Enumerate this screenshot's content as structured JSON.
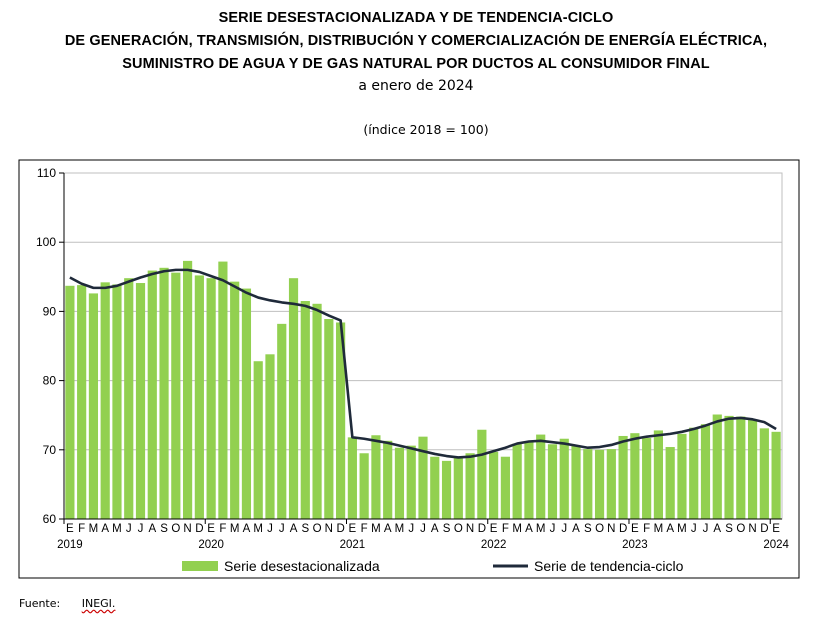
{
  "titles": {
    "line1": "SERIE DESESTACIONALIZADA Y DE TENDENCIA-CICLO",
    "line2": "DE GENERACIÓN, TRANSMISIÓN, DISTRIBUCIÓN Y COMERCIALIZACIÓN DE ENERGÍA ELÉCTRICA,",
    "line3": "SUMINISTRO DE AGUA Y DE GAS NATURAL POR DUCTOS AL CONSUMIDOR FINAL",
    "subtitle": "a enero de 2024",
    "units": "(índice 2018 = 100)"
  },
  "source": {
    "label": "Fuente:",
    "value": "INEGI."
  },
  "colors": {
    "bar": "#92d050",
    "line": "#1f2a3a",
    "grid": "#bfbfbf",
    "frame": "#000000"
  },
  "chart_data": {
    "type": "bar",
    "ylim": [
      60,
      110
    ],
    "yticks": [
      60,
      70,
      80,
      90,
      100,
      110
    ],
    "grid": true,
    "legend": "bottom",
    "categories": [
      "E",
      "F",
      "M",
      "A",
      "M",
      "J",
      "J",
      "A",
      "S",
      "O",
      "N",
      "D",
      "E",
      "F",
      "M",
      "A",
      "M",
      "J",
      "J",
      "A",
      "S",
      "O",
      "N",
      "D",
      "E",
      "F",
      "M",
      "A",
      "M",
      "J",
      "J",
      "A",
      "S",
      "O",
      "N",
      "D",
      "E",
      "F",
      "M",
      "A",
      "M",
      "J",
      "J",
      "A",
      "S",
      "O",
      "N",
      "D",
      "E",
      "F",
      "M",
      "A",
      "M",
      "J",
      "J",
      "A",
      "S",
      "O",
      "N",
      "D",
      "E"
    ],
    "years": [
      {
        "label": "2019",
        "index": 0
      },
      {
        "label": "2020",
        "index": 12
      },
      {
        "label": "2021",
        "index": 24
      },
      {
        "label": "2022",
        "index": 36
      },
      {
        "label": "2023",
        "index": 48
      },
      {
        "label": "2024",
        "index": 60
      }
    ],
    "series": [
      {
        "name": "Serie desestacionalizada",
        "type": "bar",
        "values": [
          93.7,
          93.8,
          92.6,
          94.2,
          93.9,
          94.8,
          94.1,
          95.9,
          96.3,
          95.6,
          97.3,
          95.2,
          94.8,
          97.2,
          94.3,
          93.3,
          82.8,
          83.8,
          88.2,
          94.8,
          91.5,
          91.1,
          88.9,
          88.4,
          71.8,
          69.5,
          72.1,
          71.3,
          70.3,
          70.6,
          71.9,
          69.0,
          68.4,
          68.8,
          69.5,
          72.9,
          69.7,
          69.0,
          70.9,
          71.2,
          72.2,
          70.8,
          71.6,
          70.6,
          70.1,
          70.0,
          70.1,
          72.0,
          72.4,
          71.7,
          72.8,
          70.4,
          72.3,
          73.2,
          73.7,
          75.1,
          74.9,
          74.8,
          74.3,
          73.1,
          72.6
        ]
      },
      {
        "name": "Serie de tendencia-ciclo",
        "type": "line",
        "values": [
          94.9,
          94.0,
          93.4,
          93.4,
          93.7,
          94.3,
          94.9,
          95.4,
          95.8,
          96.0,
          96.0,
          95.7,
          95.1,
          94.5,
          93.6,
          92.7,
          92.0,
          91.6,
          91.3,
          91.1,
          90.8,
          90.2,
          89.4,
          88.7,
          71.8,
          71.6,
          71.3,
          71.0,
          70.6,
          70.2,
          69.8,
          69.4,
          69.1,
          68.9,
          69.0,
          69.3,
          69.8,
          70.3,
          70.9,
          71.2,
          71.3,
          71.1,
          70.9,
          70.6,
          70.3,
          70.4,
          70.7,
          71.2,
          71.6,
          71.9,
          72.1,
          72.3,
          72.6,
          73.0,
          73.5,
          74.1,
          74.5,
          74.6,
          74.4,
          74.0,
          73.0
        ]
      }
    ]
  }
}
